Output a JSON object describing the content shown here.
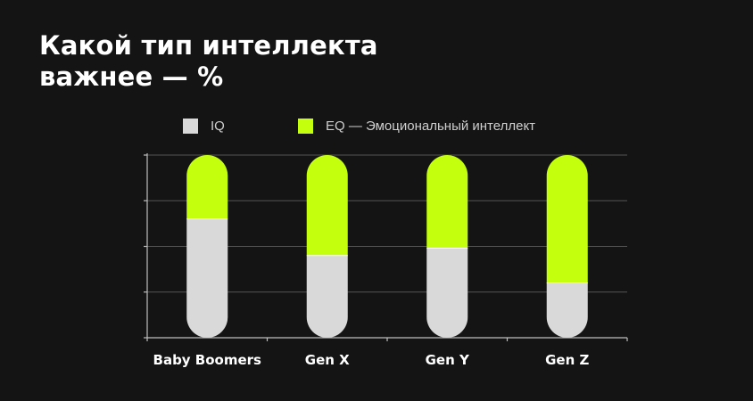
{
  "title_lines": [
    "Какой тип интеллекта",
    "важнее — %"
  ],
  "colors": {
    "background": "#141414",
    "iq": "#d9d9d9",
    "eq": "#c4ff0e",
    "grid": "#555555",
    "axis": "#bdbdbd"
  },
  "chart_data": {
    "type": "bar",
    "stacked": true,
    "categories": [
      "Baby Boomers",
      "Gen X",
      "Gen Y",
      "Gen Z"
    ],
    "series": [
      {
        "name": "IQ",
        "values": [
          65,
          45,
          49,
          30
        ]
      },
      {
        "name": "EQ — Эмоциональный интеллект",
        "values": [
          35,
          55,
          51,
          70
        ]
      }
    ],
    "ylim": [
      0,
      100
    ],
    "yticks": [
      0,
      25,
      50,
      75,
      100
    ],
    "grid": true,
    "legend_position": "top"
  }
}
